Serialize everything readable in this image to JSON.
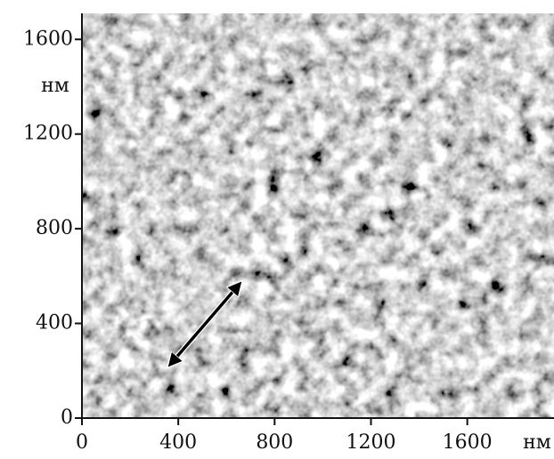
{
  "chart_data": {
    "type": "image",
    "xlabel": "нм",
    "ylabel": "нм",
    "xlim": [
      0,
      1960
    ],
    "ylim": [
      0,
      1710
    ],
    "xticks": [
      0,
      400,
      800,
      1200,
      1600
    ],
    "yticks": [
      0,
      400,
      800,
      1200,
      1600
    ]
  }
}
